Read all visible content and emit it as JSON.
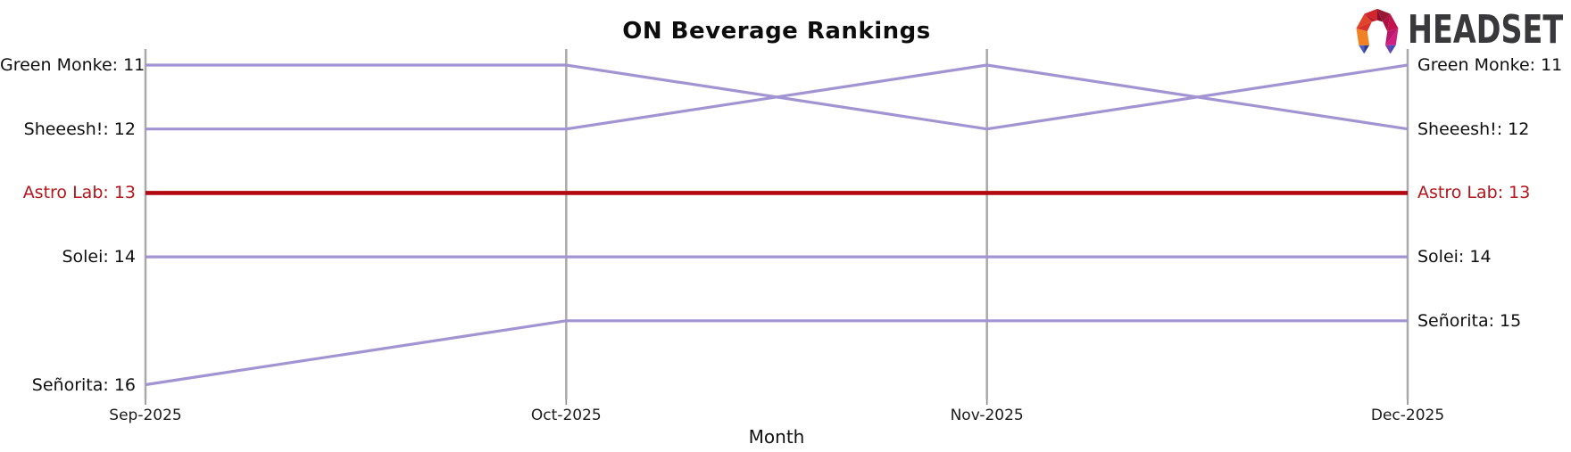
{
  "title": "ON Beverage Rankings",
  "logo": {
    "brand": "HEADSET"
  },
  "chart_data": {
    "type": "line",
    "subtype": "bump-ranking",
    "title": "ON Beverage Rankings",
    "xlabel": "Month",
    "x": [
      "Sep-2025",
      "Oct-2025",
      "Nov-2025",
      "Dec-2025"
    ],
    "y_axis": {
      "min": 11,
      "max": 16,
      "inverted": true,
      "ticks_hidden": true
    },
    "grid": "vertical-only",
    "legend_position": "none",
    "series": [
      {
        "name": "Green Monke",
        "values": [
          11,
          11,
          12,
          11
        ],
        "left_label": "Green Monke: 11",
        "right_label": "Green Monke: 11",
        "color": "#a294d2",
        "line_width": 3.2,
        "highlight": false
      },
      {
        "name": "Sheeesh!",
        "values": [
          12,
          12,
          11,
          12
        ],
        "left_label": "Sheeesh!: 12",
        "right_label": "Sheeesh!: 12",
        "color": "#a294d2",
        "line_width": 3.2,
        "highlight": false
      },
      {
        "name": "Astro Lab",
        "values": [
          13,
          13,
          13,
          13
        ],
        "left_label": "Astro Lab: 13",
        "right_label": "Astro Lab: 13",
        "color": "#b2080f",
        "line_width": 4.6,
        "highlight": true
      },
      {
        "name": "Solei",
        "values": [
          14,
          14,
          14,
          14
        ],
        "left_label": "Solei: 14",
        "right_label": "Solei: 14",
        "color": "#a294d2",
        "line_width": 3.2,
        "highlight": false
      },
      {
        "name": "Señorita",
        "values": [
          16,
          15,
          15,
          15
        ],
        "left_label": "Señorita: 16",
        "right_label": "Señorita: 15",
        "color": "#a294d2",
        "line_width": 3.2,
        "highlight": false
      }
    ],
    "colors": {
      "grid": "#a9a9a9",
      "tick": "#8a8a8a",
      "label": "#0f0f0f",
      "highlight_label": "#b5151b"
    }
  }
}
